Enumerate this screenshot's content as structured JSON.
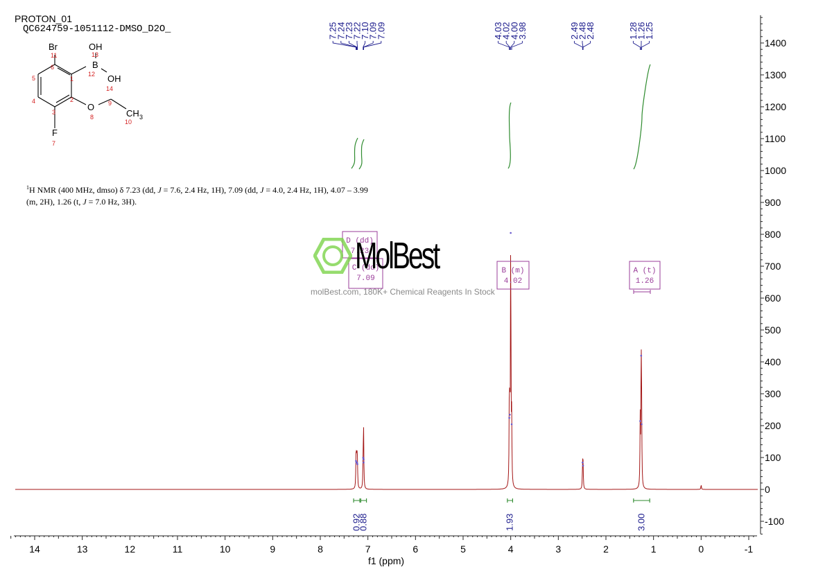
{
  "header": {
    "experiment": "PROTON_01",
    "sample": "QC624759-1051112-DMSO_D2O_"
  },
  "structure": {
    "atoms": {
      "br": "Br",
      "oh1": "OH",
      "b": "B",
      "oh2": "OH",
      "o": "O",
      "ch3": "CH",
      "ch3_sub": "3",
      "f": "F"
    },
    "numbers": {
      "n11": "11",
      "n13": "13",
      "n6": "6",
      "n1": "1",
      "n12": "12",
      "n14": "14",
      "n5": "5",
      "n4": "4",
      "n2": "2",
      "n3": "3",
      "n8": "8",
      "n9": "9",
      "n10": "10",
      "n7": "7"
    }
  },
  "description": {
    "sup": "1",
    "p1": "H NMR (400 MHz, dmso) δ 7.23 (dd, ",
    "j": "J",
    "p2": " = 7.6, 2.4 Hz, 1H), 7.09 (dd, ",
    "p3": " = 4.0, 2.4 Hz, 1H), 4.07 – 3.99",
    "p4": "(m, 2H), 1.26 (t, ",
    "p5": " = 7.0 Hz, 3H)."
  },
  "watermark": {
    "logo": "MolBest",
    "text": "molBest.com, 180K+ Chemical Reagents In Stock"
  },
  "colors": {
    "spectrum": "#a31515",
    "peak_labels": "#1a1a8c",
    "integral": "#2e8b2e",
    "multiplet_box": "#9a3d9a",
    "axis": "#222222",
    "logo_green": "#7cd34a"
  },
  "chart_data": {
    "type": "line",
    "xlabel": "f1 (ppm)",
    "xlim": [
      14.5,
      -1.1
    ],
    "xticks": [
      "14",
      "13",
      "12",
      "11",
      "10",
      "9",
      "8",
      "7",
      "6",
      "5",
      "4",
      "3",
      "2",
      "1",
      "0",
      "-1"
    ],
    "ylim": [
      -150,
      1500
    ],
    "yticks": [
      "1400",
      "1300",
      "1200",
      "1100",
      "1000",
      "900",
      "800",
      "700",
      "600",
      "500",
      "400",
      "300",
      "200",
      "100",
      "0",
      "-100"
    ],
    "series": [
      {
        "values_description": "",
        "peaks": [
          {
            "ppm": 7.25,
            "height": 85
          },
          {
            "ppm": 7.24,
            "height": 80
          },
          {
            "ppm": 7.23,
            "height": 80
          },
          {
            "ppm": 7.22,
            "height": 75
          },
          {
            "ppm": 7.1,
            "height": 95
          },
          {
            "ppm": 7.09,
            "height": 90
          },
          {
            "ppm": 7.09,
            "height": 80
          },
          {
            "ppm": 4.03,
            "height": 220
          },
          {
            "ppm": 4.02,
            "height": 230
          },
          {
            "ppm": 4.0,
            "height": 800
          },
          {
            "ppm": 3.98,
            "height": 200
          },
          {
            "ppm": 2.49,
            "height": 80
          },
          {
            "ppm": 2.48,
            "height": 70
          },
          {
            "ppm": 1.28,
            "height": 210
          },
          {
            "ppm": 1.26,
            "height": 415
          },
          {
            "ppm": 1.25,
            "height": 200
          },
          {
            "ppm": 0.0,
            "height": 15
          }
        ]
      }
    ],
    "peak_labels": [
      {
        "group": [
          7.25,
          7.24,
          7.23,
          7.22,
          7.1,
          7.09,
          7.09
        ],
        "labels": [
          "7.25",
          "7.24",
          "7.23",
          "7.22",
          "7.10",
          "7.09",
          "7.09"
        ]
      },
      {
        "group": [
          4.03,
          4.02,
          4.0,
          3.98
        ],
        "labels": [
          "4.03",
          "4.02",
          "4.00",
          "3.98"
        ]
      },
      {
        "group": [
          2.49,
          2.48,
          2.48
        ],
        "labels": [
          "2.49",
          "2.48",
          "2.48"
        ]
      },
      {
        "group": [
          1.28,
          1.26,
          1.25
        ],
        "labels": [
          "1.28",
          "1.26",
          "1.25"
        ]
      }
    ],
    "multiplets": [
      {
        "name": "D (dd)",
        "shift": "7.23",
        "ppm": 7.23
      },
      {
        "name": "C (dd)",
        "shift": "7.09",
        "ppm": 7.09
      },
      {
        "name": "B (m)",
        "shift": "4.02",
        "ppm": 4.02
      },
      {
        "name": "A (t)",
        "shift": "1.26",
        "ppm": 1.26
      }
    ],
    "integrals": [
      {
        "from": 7.3,
        "to": 7.17,
        "value": "0.92"
      },
      {
        "from": 7.15,
        "to": 7.03,
        "value": "0.88"
      },
      {
        "from": 4.07,
        "to": 3.96,
        "value": "1.93"
      },
      {
        "from": 1.42,
        "to": 1.08,
        "value": "3.00"
      }
    ]
  }
}
